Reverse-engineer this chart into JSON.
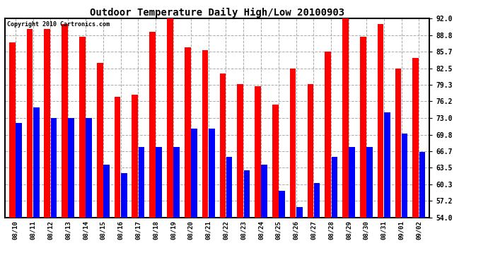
{
  "title": "Outdoor Temperature Daily High/Low 20100903",
  "copyright": "Copyright 2010 Cartronics.com",
  "categories": [
    "08/10",
    "08/11",
    "08/12",
    "08/13",
    "08/14",
    "08/15",
    "08/16",
    "08/17",
    "08/18",
    "08/19",
    "08/20",
    "08/21",
    "08/22",
    "08/23",
    "08/24",
    "08/25",
    "08/26",
    "08/27",
    "08/28",
    "08/29",
    "08/30",
    "08/31",
    "09/01",
    "09/02"
  ],
  "highs": [
    87.5,
    90.0,
    90.0,
    91.0,
    88.5,
    83.5,
    77.0,
    77.5,
    89.5,
    92.5,
    86.5,
    86.0,
    81.5,
    79.5,
    79.0,
    75.5,
    82.5,
    79.5,
    85.7,
    92.0,
    88.5,
    91.0,
    82.5,
    84.5
  ],
  "lows": [
    72.0,
    75.0,
    73.0,
    73.0,
    73.0,
    64.0,
    62.5,
    67.5,
    67.5,
    67.5,
    71.0,
    71.0,
    65.5,
    63.0,
    64.0,
    59.0,
    56.0,
    60.5,
    65.5,
    67.5,
    67.5,
    74.0,
    70.0,
    66.5
  ],
  "high_color": "#ff0000",
  "low_color": "#0000ff",
  "bg_color": "#ffffff",
  "grid_color": "#aaaaaa",
  "ymin": 54.0,
  "ymax": 92.0,
  "yticks": [
    54.0,
    57.2,
    60.3,
    63.5,
    66.7,
    69.8,
    73.0,
    76.2,
    79.3,
    82.5,
    85.7,
    88.8,
    92.0
  ]
}
